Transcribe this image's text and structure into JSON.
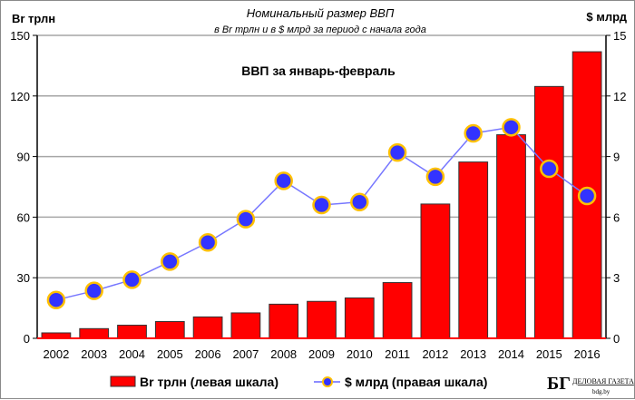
{
  "chart_data": {
    "type": "bar+line",
    "title": "Номинальный  размер ВВП",
    "subtitle": "в Br трлн и в $ млрд за период с начала года",
    "annotation": "ВВП за январь-февраль",
    "y_left_label": "Br трлн",
    "y_right_label": "$ млрд",
    "y_left_lim": [
      0,
      150
    ],
    "y_left_ticks": [
      0,
      30,
      60,
      90,
      120,
      150
    ],
    "y_right_lim": [
      0,
      15
    ],
    "y_right_ticks": [
      0,
      3,
      6,
      9,
      12,
      15
    ],
    "grid": true,
    "legend_position": "bottom",
    "categories": [
      "2002",
      "2003",
      "2004",
      "2005",
      "2006",
      "2007",
      "2008",
      "2009",
      "2010",
      "2011",
      "2012",
      "2013",
      "2014",
      "2015",
      "2016"
    ],
    "series": [
      {
        "name": "Br трлн (левая шкала)",
        "type": "bar",
        "axis": "left",
        "color": "#ff0000",
        "values": [
          2.7,
          4.8,
          6.5,
          8.3,
          10.6,
          12.6,
          16.9,
          18.3,
          20.0,
          27.6,
          66.5,
          87.3,
          100.8,
          124.7,
          141.9
        ]
      },
      {
        "name": "$ млрд (правая шкала)",
        "type": "line",
        "axis": "right",
        "color": "#3333ff",
        "marker_edge": "#ffc000",
        "values": [
          1.9,
          2.35,
          2.9,
          3.8,
          4.75,
          5.9,
          7.8,
          6.6,
          6.75,
          9.2,
          8.0,
          10.15,
          10.45,
          8.4,
          7.05
        ]
      }
    ]
  },
  "logo": {
    "text": "БГ",
    "name": "ДЕЛОВАЯ ГАЗЕТА",
    "site": "bdg.by"
  }
}
